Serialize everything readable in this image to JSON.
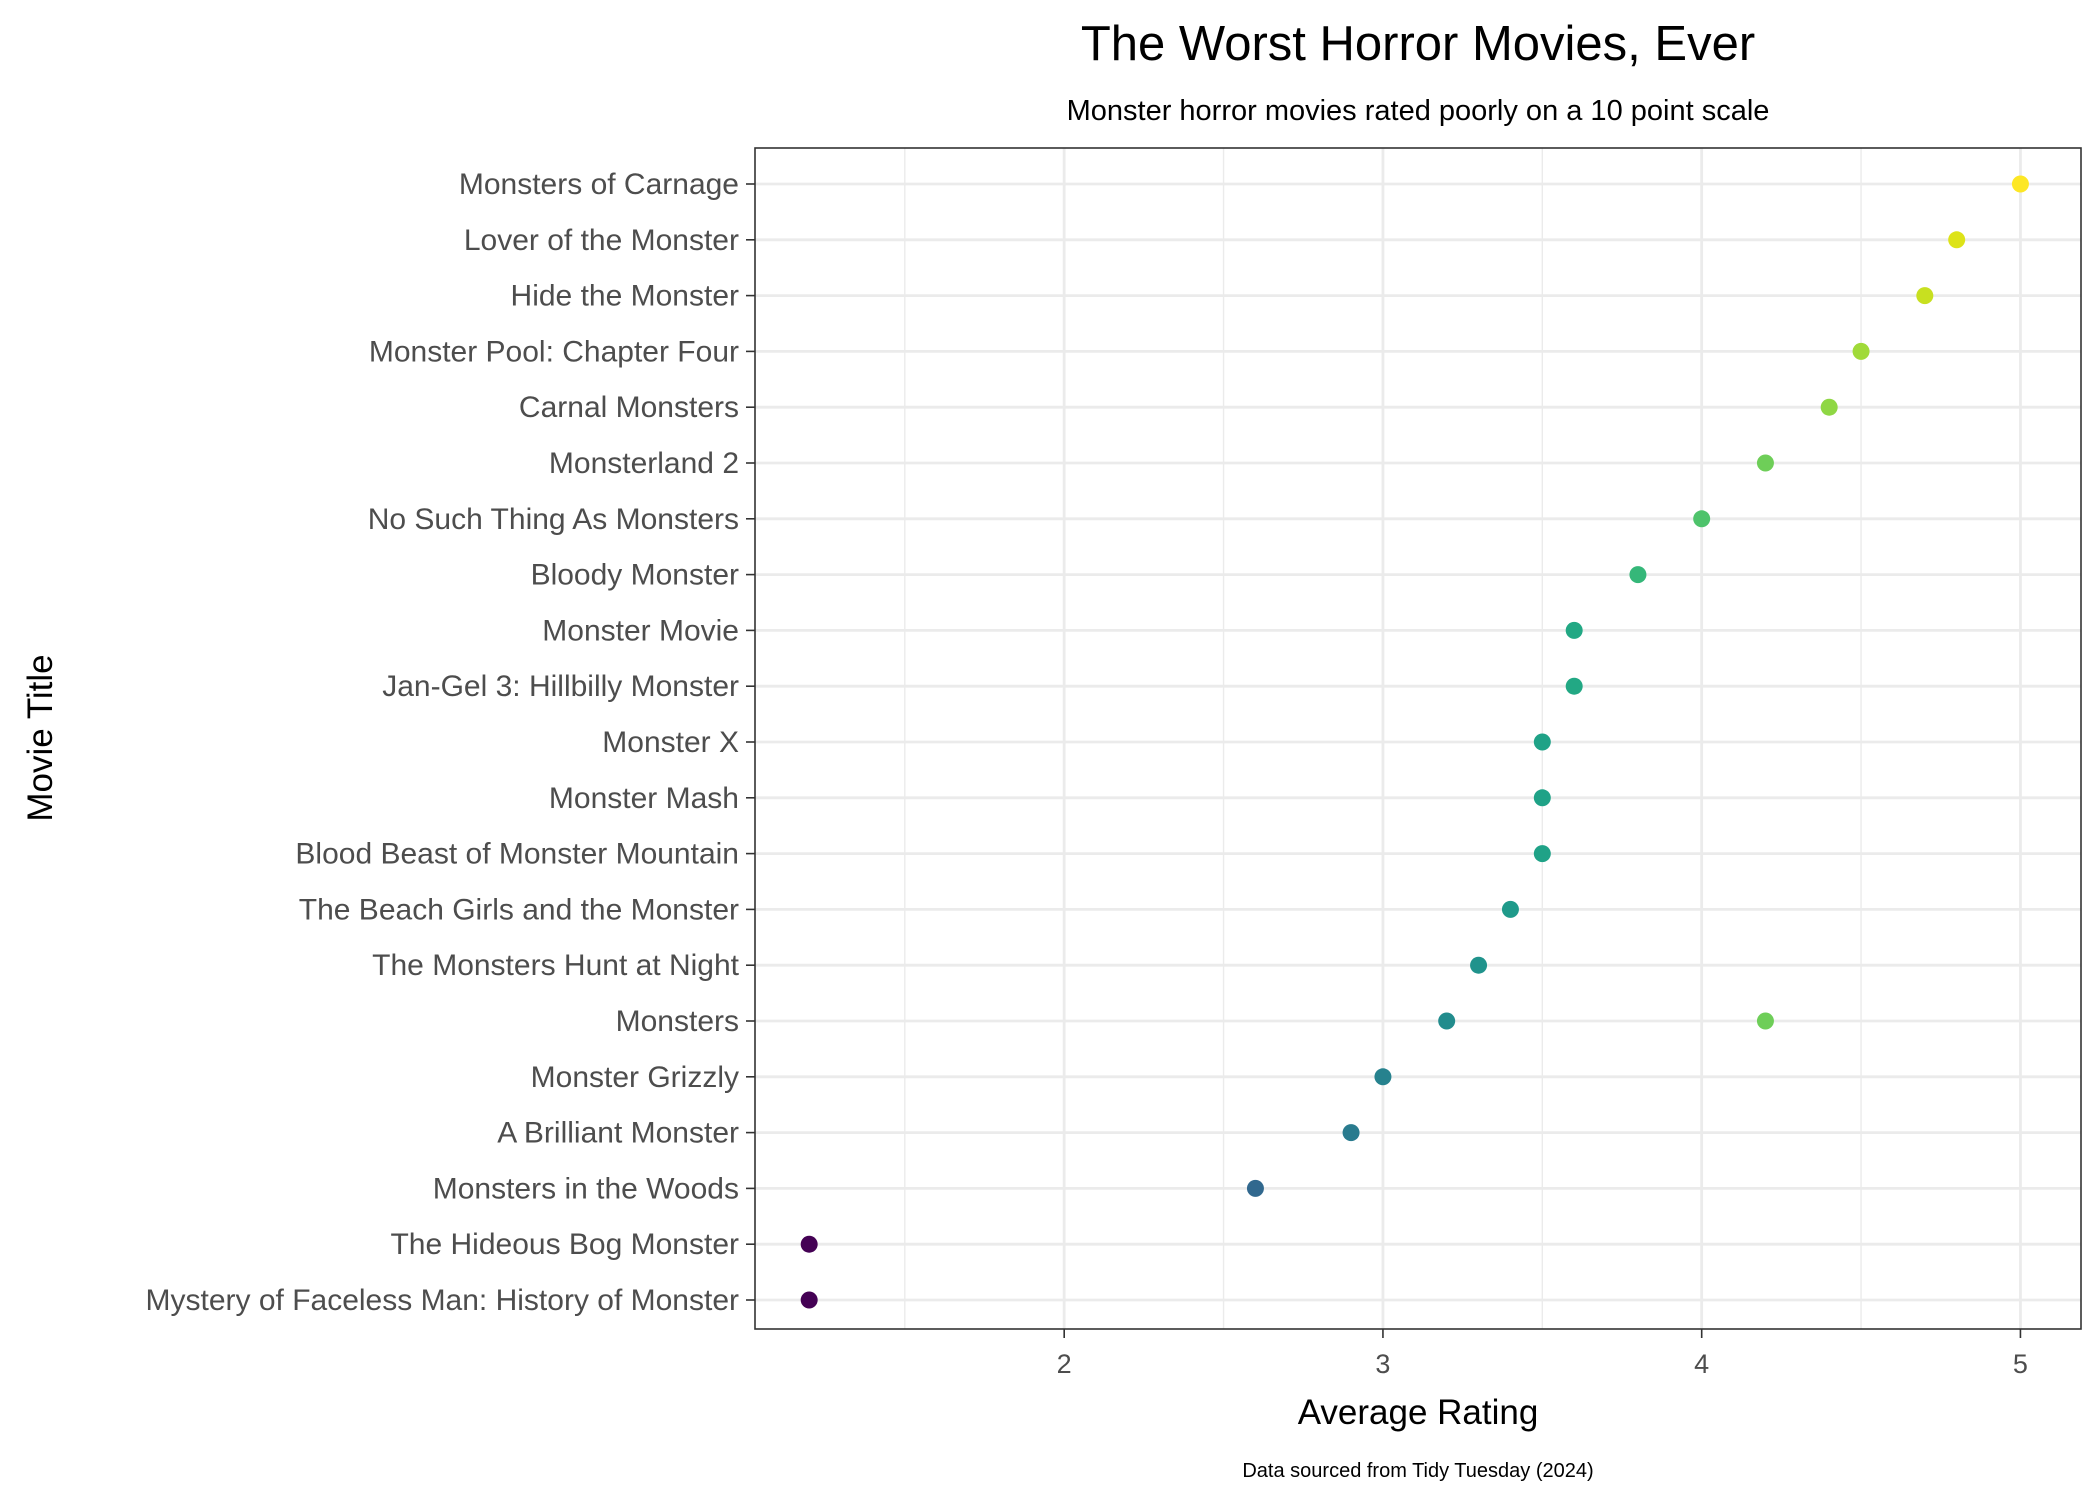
{
  "chart_data": {
    "type": "scatter",
    "title": "The Worst Horror Movies, Ever",
    "subtitle": "Monster horror movies rated poorly on a 10 point scale",
    "xlabel": "Average Rating",
    "ylabel": "Movie Title",
    "caption": "Data sourced from Tidy Tuesday (2024)",
    "xlim": [
      1.03,
      5.19
    ],
    "xticks": [
      2,
      3,
      4,
      5
    ],
    "grid": true,
    "categories": [
      "Monsters of Carnage",
      "Lover of the Monster",
      "Hide the Monster",
      "Monster Pool: Chapter Four",
      "Carnal Monsters",
      "Monsterland 2",
      "No Such Thing As Monsters",
      "Bloody Monster",
      "Monster Movie",
      "Jan-Gel 3: Hillbilly Monster",
      "Monster X",
      "Monster Mash",
      "Blood Beast of Monster Mountain",
      "The Beach Girls and the Monster",
      "The Monsters Hunt at Night",
      "Monsters",
      "Monster Grizzly",
      "A Brilliant Monster",
      "Monsters in the Woods",
      "The Hideous Bog Monster",
      "Mystery of Faceless Man: History of Monster"
    ],
    "points": [
      {
        "title": "Monsters of Carnage",
        "rating": 5.0,
        "color": "#fde725"
      },
      {
        "title": "Lover of the Monster",
        "rating": 4.8,
        "color": "#dde318"
      },
      {
        "title": "Hide the Monster",
        "rating": 4.7,
        "color": "#c8e020"
      },
      {
        "title": "Monster Pool: Chapter Four",
        "rating": 4.5,
        "color": "#a0da39"
      },
      {
        "title": "Carnal Monsters",
        "rating": 4.4,
        "color": "#8fd744"
      },
      {
        "title": "Monsterland 2",
        "rating": 4.2,
        "color": "#6ece58"
      },
      {
        "title": "No Such Thing As Monsters",
        "rating": 4.0,
        "color": "#4ec36b"
      },
      {
        "title": "Bloody Monster",
        "rating": 3.8,
        "color": "#35b779"
      },
      {
        "title": "Monster Movie",
        "rating": 3.6,
        "color": "#22a884"
      },
      {
        "title": "Jan-Gel 3: Hillbilly Monster",
        "rating": 3.6,
        "color": "#22a884"
      },
      {
        "title": "Monster X",
        "rating": 3.5,
        "color": "#1fa287"
      },
      {
        "title": "Monster Mash",
        "rating": 3.5,
        "color": "#1fa287"
      },
      {
        "title": "Blood Beast of Monster Mountain",
        "rating": 3.5,
        "color": "#1fa287"
      },
      {
        "title": "The Beach Girls and the Monster",
        "rating": 3.4,
        "color": "#1f9a8a"
      },
      {
        "title": "The Monsters Hunt at Night",
        "rating": 3.3,
        "color": "#20938c"
      },
      {
        "title": "Monsters",
        "rating": 3.2,
        "color": "#228c8d"
      },
      {
        "title": "Monsters",
        "rating": 4.2,
        "color": "#6ece58"
      },
      {
        "title": "Monster Grizzly",
        "rating": 3.0,
        "color": "#26828e"
      },
      {
        "title": "A Brilliant Monster",
        "rating": 2.9,
        "color": "#297b8e"
      },
      {
        "title": "Monsters in the Woods",
        "rating": 2.6,
        "color": "#31688e"
      },
      {
        "title": "The Hideous Bog Monster",
        "rating": 1.2,
        "color": "#440154"
      },
      {
        "title": "Mystery of Faceless Man: History of Monster",
        "rating": 1.2,
        "color": "#440154"
      }
    ]
  }
}
